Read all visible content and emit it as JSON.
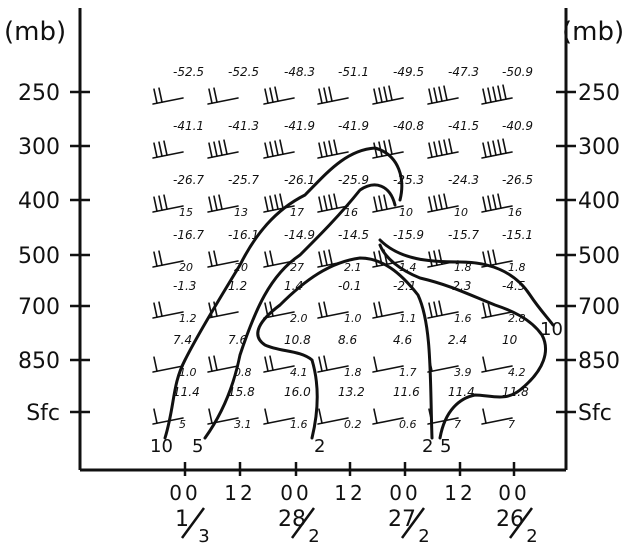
{
  "chart_data": {
    "type": "time-height cross section",
    "ylabel_left": "(mb)",
    "ylabel_right": "(mb)",
    "levels": [
      "250",
      "300",
      "400",
      "500",
      "700",
      "850",
      "Sfc"
    ],
    "time_labels": [
      "00",
      "12",
      "00",
      "12",
      "00",
      "12",
      "00"
    ],
    "date_labels": [
      {
        "num": "1",
        "den": "3"
      },
      {
        "num": "28",
        "den": "2"
      },
      {
        "num": "27",
        "den": "2"
      },
      {
        "num": "26",
        "den": "2"
      }
    ],
    "temperatures": {
      "250": [
        "-52.5",
        "-52.5",
        "-48.3",
        "-51.1",
        "-49.5",
        "-47.3",
        "-50.9"
      ],
      "300": [
        "-41.1",
        "-41.3",
        "-41.9",
        "-41.9",
        "-40.8",
        "-41.5",
        "-40.9"
      ],
      "400": [
        "-26.7",
        "-25.7",
        "-26.1",
        "-25.9",
        "-25.3",
        "-24.3",
        "-26.5"
      ],
      "500": [
        "-16.7",
        "-16.1",
        "-14.9",
        "-14.5",
        "-15.9",
        "-15.7",
        "-15.1"
      ],
      "700": [
        "-1.3",
        "1.2",
        "1.4",
        "-0.1",
        "-2.1",
        "-2.3",
        "-4.5"
      ],
      "850": [
        "7.4",
        "7.6",
        "10.8",
        "8.6",
        "4.6",
        "2.4",
        "10"
      ],
      "Sfc": [
        "11.4",
        "15.8",
        "16.0",
        "13.2",
        "11.6",
        "11.4",
        "11.8"
      ]
    },
    "humidity": {
      "400": [
        "15",
        "13",
        "17",
        "16",
        "10",
        "10",
        "16"
      ],
      "500": [
        "20",
        "20",
        "27",
        "2.1",
        "1.4",
        "1.8",
        "1.8"
      ],
      "700": [
        "1.2",
        "",
        "2.0",
        "1.0",
        "1.1",
        "1.6",
        "2.8"
      ],
      "850": [
        "1.0",
        "0.8",
        "4.1",
        "1.8",
        "1.7",
        "3.9",
        "4.2"
      ],
      "Sfc": [
        "5",
        "3.1",
        "1.6",
        "0.2",
        "0.6",
        "7",
        "7"
      ]
    },
    "isolines": [
      {
        "label": "10"
      },
      {
        "label": "5"
      },
      {
        "label": "2"
      },
      {
        "label": "2"
      },
      {
        "label": "5"
      },
      {
        "label": "10"
      }
    ]
  }
}
